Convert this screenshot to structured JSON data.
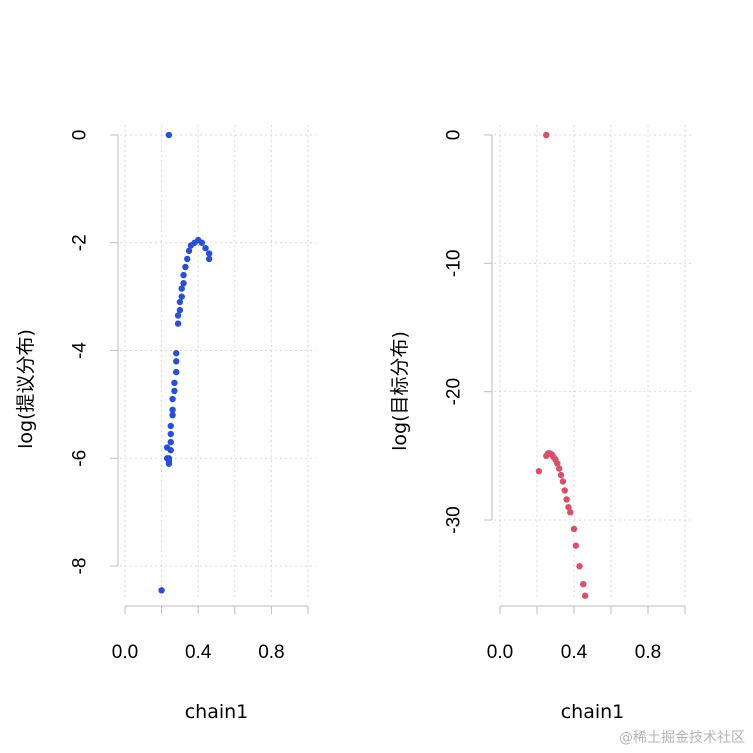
{
  "chart_data": [
    {
      "type": "scatter",
      "xlabel": "chain1",
      "ylabel": "log(提议分布)",
      "xlim": [
        0,
        1
      ],
      "ylim": [
        -8.5,
        0
      ],
      "xticks": [
        "0.0",
        "0.4",
        "0.8"
      ],
      "xtick_values": [
        0,
        0.4,
        0.8
      ],
      "yticks": [
        "0",
        "-2",
        "-4",
        "-6",
        "-8"
      ],
      "ytick_values": [
        0,
        -2,
        -4,
        -6,
        -8
      ],
      "grid": true,
      "color": "#2a4fd6",
      "x": [
        0.24,
        0.4,
        0.38,
        0.42,
        0.44,
        0.46,
        0.46,
        0.36,
        0.35,
        0.34,
        0.33,
        0.32,
        0.32,
        0.31,
        0.31,
        0.3,
        0.3,
        0.29,
        0.29,
        0.28,
        0.28,
        0.28,
        0.27,
        0.27,
        0.26,
        0.26,
        0.26,
        0.25,
        0.25,
        0.25,
        0.25,
        0.24,
        0.24,
        0.24,
        0.23,
        0.23,
        0.2
      ],
      "y": [
        0,
        -1.95,
        -2.0,
        -2.0,
        -2.1,
        -2.2,
        -2.3,
        -2.05,
        -2.15,
        -2.3,
        -2.45,
        -2.6,
        -2.75,
        -2.85,
        -3.0,
        -3.1,
        -3.25,
        -3.35,
        -3.5,
        -4.05,
        -4.2,
        -4.4,
        -4.6,
        -4.75,
        -4.9,
        -5.1,
        -5.2,
        -5.4,
        -5.55,
        -5.7,
        -5.85,
        -6.0,
        -6.05,
        -6.1,
        -5.8,
        -6.0,
        -8.45
      ]
    },
    {
      "type": "scatter",
      "xlabel": "chain1",
      "ylabel": "log(目标分布)",
      "xlim": [
        0,
        1
      ],
      "ylim": [
        -36,
        0
      ],
      "xticks": [
        "0.0",
        "0.4",
        "0.8"
      ],
      "xtick_values": [
        0,
        0.4,
        0.8
      ],
      "yticks": [
        "0",
        "-10",
        "-20",
        "-30"
      ],
      "ytick_values": [
        0,
        -10,
        -20,
        -30
      ],
      "grid": true,
      "color": "#d9506a",
      "x": [
        0.25,
        0.21,
        0.25,
        0.26,
        0.27,
        0.28,
        0.29,
        0.3,
        0.31,
        0.32,
        0.33,
        0.34,
        0.35,
        0.36,
        0.37,
        0.38,
        0.4,
        0.41,
        0.43,
        0.45,
        0.46
      ],
      "y": [
        0,
        -26.2,
        -25.0,
        -24.8,
        -24.8,
        -24.9,
        -25.1,
        -25.3,
        -25.6,
        -26.0,
        -26.5,
        -27.0,
        -27.7,
        -28.4,
        -29.0,
        -29.4,
        -30.7,
        -32.0,
        -33.6,
        -35.0,
        -35.9
      ]
    }
  ],
  "watermark": "@稀土掘金技术社区"
}
